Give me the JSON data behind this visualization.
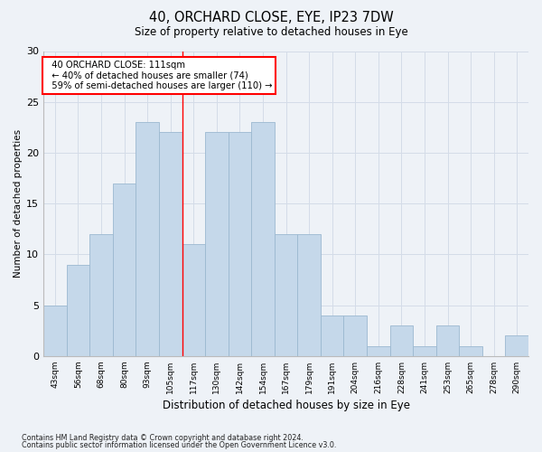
{
  "title1": "40, ORCHARD CLOSE, EYE, IP23 7DW",
  "title2": "Size of property relative to detached houses in Eye",
  "xlabel": "Distribution of detached houses by size in Eye",
  "ylabel": "Number of detached properties",
  "categories": [
    "43sqm",
    "56sqm",
    "68sqm",
    "80sqm",
    "93sqm",
    "105sqm",
    "117sqm",
    "130sqm",
    "142sqm",
    "154sqm",
    "167sqm",
    "179sqm",
    "191sqm",
    "204sqm",
    "216sqm",
    "228sqm",
    "241sqm",
    "253sqm",
    "265sqm",
    "278sqm",
    "290sqm"
  ],
  "values": [
    5,
    9,
    12,
    17,
    23,
    22,
    11,
    22,
    22,
    23,
    12,
    12,
    4,
    4,
    1,
    3,
    1,
    3,
    1,
    0,
    2
  ],
  "bar_color": "#c5d8ea",
  "bar_edge_color": "#9bb8d0",
  "grid_color": "#d4dce8",
  "vline_x": 5.5,
  "vline_color": "red",
  "annotation_text": "  40 ORCHARD CLOSE: 111sqm\n  ← 40% of detached houses are smaller (74)\n  59% of semi-detached houses are larger (110) →",
  "annotation_box_color": "white",
  "annotation_box_edge": "red",
  "ylim": [
    0,
    30
  ],
  "yticks": [
    0,
    5,
    10,
    15,
    20,
    25,
    30
  ],
  "footnote1": "Contains HM Land Registry data © Crown copyright and database right 2024.",
  "footnote2": "Contains public sector information licensed under the Open Government Licence v3.0.",
  "bg_color": "#eef2f7"
}
